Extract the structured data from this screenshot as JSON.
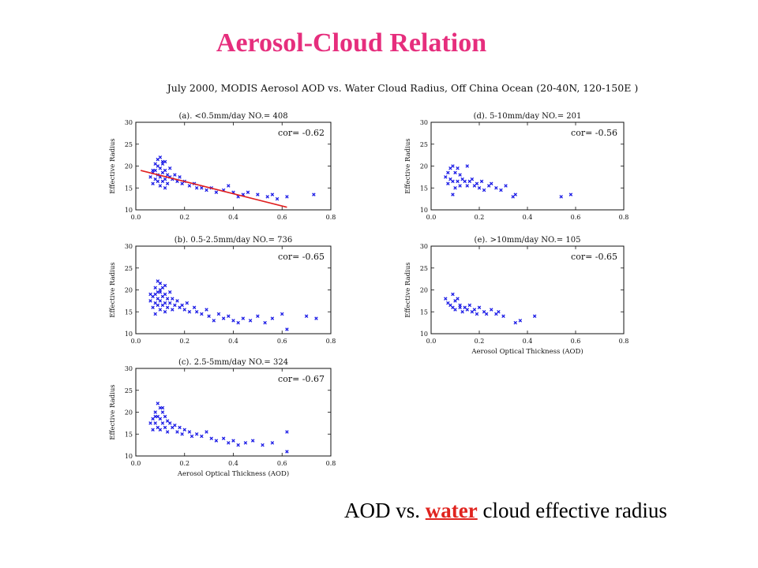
{
  "slide": {
    "title": "Aerosol-Cloud  Relation",
    "figure_title": "July 2000, MODIS Aerosol AOD vs. Water Cloud Radius,  Off China Ocean (20-40N, 120-150E )",
    "caption_before": "AOD vs. ",
    "caption_highlight": "water",
    "caption_after": " cloud effective radius"
  },
  "colors": {
    "title": "#e62e7d",
    "points": "#1a1ae6",
    "fit_line": "#e02020",
    "highlight": "#e0241f"
  },
  "chart_data": [
    {
      "id": "a",
      "type": "scatter",
      "title": "(a). <0.5mm/day    NO.=   408",
      "corr": "cor= -0.62",
      "xlabel": "",
      "ylabel": "Effective Radius",
      "xlim": [
        0,
        0.8
      ],
      "ylim": [
        10,
        30
      ],
      "xticks": [
        "0.0",
        "0.2",
        "0.4",
        "0.6",
        "0.8"
      ],
      "yticks": [
        "10",
        "15",
        "20",
        "25",
        "30"
      ],
      "fit_line": {
        "x": [
          0.02,
          0.62
        ],
        "y": [
          19.0,
          10.6
        ]
      },
      "series": [
        {
          "x": [
            0.06,
            0.07,
            0.07,
            0.08,
            0.08,
            0.08,
            0.09,
            0.09,
            0.09,
            0.1,
            0.1,
            0.1,
            0.1,
            0.11,
            0.11,
            0.11,
            0.12,
            0.12,
            0.12,
            0.13,
            0.13,
            0.14,
            0.14,
            0.15,
            0.16,
            0.17,
            0.18,
            0.19,
            0.2,
            0.22,
            0.24,
            0.25,
            0.27,
            0.29,
            0.31,
            0.33,
            0.36,
            0.38,
            0.4,
            0.42,
            0.44,
            0.46,
            0.5,
            0.54,
            0.56,
            0.58,
            0.62,
            0.73,
            0.09,
            0.11,
            0.12,
            0.07
          ],
          "y": [
            17.5,
            18.5,
            16.0,
            20.5,
            19.0,
            17.0,
            21.5,
            18.0,
            16.5,
            22.0,
            19.5,
            17.5,
            15.5,
            20.5,
            18.5,
            16.5,
            21.0,
            19.0,
            17.0,
            18.0,
            16.0,
            19.5,
            17.5,
            17.0,
            18.0,
            16.5,
            17.5,
            16.0,
            16.5,
            15.5,
            16.0,
            15.0,
            15.0,
            14.5,
            15.0,
            14.0,
            14.5,
            15.5,
            14.0,
            13.0,
            13.5,
            14.0,
            13.5,
            13.0,
            13.5,
            12.5,
            13.0,
            13.5,
            20.0,
            21.0,
            15.0,
            19.0
          ]
        }
      ]
    },
    {
      "id": "b",
      "type": "scatter",
      "title": "(b). 0.5-2.5mm/day    NO.=   736",
      "corr": "cor= -0.65",
      "xlabel": "",
      "ylabel": "Effective Radius",
      "xlim": [
        0,
        0.8
      ],
      "ylim": [
        10,
        30
      ],
      "xticks": [
        "0.0",
        "0.2",
        "0.4",
        "0.6",
        "0.8"
      ],
      "yticks": [
        "10",
        "15",
        "20",
        "25",
        "30"
      ],
      "series": [
        {
          "x": [
            0.06,
            0.07,
            0.07,
            0.08,
            0.08,
            0.08,
            0.09,
            0.09,
            0.09,
            0.09,
            0.1,
            0.1,
            0.1,
            0.1,
            0.11,
            0.11,
            0.11,
            0.12,
            0.12,
            0.12,
            0.13,
            0.13,
            0.14,
            0.14,
            0.15,
            0.15,
            0.16,
            0.17,
            0.18,
            0.19,
            0.2,
            0.21,
            0.22,
            0.24,
            0.25,
            0.27,
            0.29,
            0.3,
            0.32,
            0.34,
            0.36,
            0.38,
            0.4,
            0.42,
            0.44,
            0.47,
            0.5,
            0.53,
            0.56,
            0.6,
            0.62,
            0.7,
            0.74,
            0.08,
            0.1,
            0.12,
            0.06
          ],
          "y": [
            17.5,
            18.5,
            16.0,
            20.5,
            19.0,
            17.0,
            22.0,
            19.5,
            18.0,
            16.5,
            21.5,
            19.5,
            17.5,
            15.5,
            20.5,
            18.5,
            16.5,
            21.0,
            19.0,
            17.0,
            18.0,
            16.0,
            19.5,
            17.0,
            18.0,
            15.5,
            16.5,
            17.5,
            16.0,
            16.5,
            15.5,
            17.0,
            15.0,
            16.0,
            15.0,
            14.5,
            15.5,
            14.0,
            13.0,
            14.5,
            13.5,
            14.0,
            13.0,
            12.5,
            13.5,
            13.0,
            14.0,
            12.5,
            13.5,
            14.5,
            11.0,
            14.0,
            13.5,
            14.5,
            20.0,
            15.0,
            19.0
          ]
        }
      ]
    },
    {
      "id": "c",
      "type": "scatter",
      "title": "(c). 2.5-5mm/day    NO.=   324",
      "corr": "cor= -0.67",
      "xlabel": "Aerosol Optical Thickness (AOD)",
      "ylabel": "Effective Radius",
      "xlim": [
        0,
        0.8
      ],
      "ylim": [
        10,
        30
      ],
      "xticks": [
        "0.0",
        "0.2",
        "0.4",
        "0.6",
        "0.8"
      ],
      "yticks": [
        "10",
        "15",
        "20",
        "25",
        "30"
      ],
      "series": [
        {
          "x": [
            0.06,
            0.07,
            0.07,
            0.08,
            0.08,
            0.09,
            0.09,
            0.09,
            0.1,
            0.1,
            0.1,
            0.11,
            0.11,
            0.12,
            0.12,
            0.13,
            0.13,
            0.14,
            0.15,
            0.16,
            0.17,
            0.18,
            0.19,
            0.2,
            0.22,
            0.23,
            0.25,
            0.27,
            0.29,
            0.31,
            0.33,
            0.36,
            0.38,
            0.4,
            0.42,
            0.45,
            0.48,
            0.52,
            0.56,
            0.62,
            0.62,
            0.08,
            0.11
          ],
          "y": [
            17.5,
            18.5,
            16.0,
            20.0,
            17.5,
            22.0,
            19.0,
            16.5,
            21.0,
            18.5,
            16.0,
            20.0,
            17.5,
            19.0,
            16.5,
            18.0,
            15.5,
            17.5,
            16.5,
            17.0,
            15.5,
            16.5,
            15.0,
            16.0,
            15.5,
            14.5,
            15.0,
            14.5,
            15.5,
            14.0,
            13.5,
            14.0,
            13.0,
            13.5,
            12.5,
            13.0,
            13.5,
            12.5,
            13.0,
            15.5,
            11.0,
            19.0,
            21.0
          ]
        }
      ]
    },
    {
      "id": "d",
      "type": "scatter",
      "title": "(d). 5-10mm/day    NO.=   201",
      "corr": "cor= -0.56",
      "xlabel": "",
      "ylabel": "Effective Radius",
      "xlim": [
        0,
        0.8
      ],
      "ylim": [
        10,
        30
      ],
      "xticks": [
        "0.0",
        "0.2",
        "0.4",
        "0.6",
        "0.8"
      ],
      "yticks": [
        "10",
        "15",
        "20",
        "25",
        "30"
      ],
      "series": [
        {
          "x": [
            0.06,
            0.07,
            0.07,
            0.08,
            0.08,
            0.09,
            0.09,
            0.1,
            0.1,
            0.11,
            0.11,
            0.12,
            0.12,
            0.13,
            0.14,
            0.15,
            0.16,
            0.17,
            0.18,
            0.19,
            0.2,
            0.21,
            0.22,
            0.24,
            0.25,
            0.27,
            0.29,
            0.31,
            0.34,
            0.35,
            0.54,
            0.58,
            0.09,
            0.15
          ],
          "y": [
            17.5,
            18.5,
            16.0,
            19.5,
            17.0,
            20.0,
            16.5,
            18.5,
            15.0,
            19.5,
            16.5,
            18.0,
            15.5,
            17.0,
            16.5,
            15.5,
            16.5,
            17.0,
            15.5,
            16.0,
            15.0,
            16.5,
            14.5,
            15.5,
            16.0,
            15.0,
            14.5,
            15.5,
            13.0,
            13.5,
            13.0,
            13.5,
            13.5,
            20.0
          ]
        }
      ]
    },
    {
      "id": "e",
      "type": "scatter",
      "title": "(e). >10mm/day    NO.=   105",
      "corr": "cor= -0.65",
      "xlabel": "Aerosol Optical Thickness (AOD)",
      "ylabel": "Effective Radius",
      "xlim": [
        0,
        0.8
      ],
      "ylim": [
        10,
        30
      ],
      "xticks": [
        "0.0",
        "0.2",
        "0.4",
        "0.6",
        "0.8"
      ],
      "yticks": [
        "10",
        "15",
        "20",
        "25",
        "30"
      ],
      "series": [
        {
          "x": [
            0.06,
            0.07,
            0.08,
            0.09,
            0.1,
            0.1,
            0.11,
            0.12,
            0.13,
            0.14,
            0.15,
            0.16,
            0.17,
            0.18,
            0.19,
            0.2,
            0.22,
            0.23,
            0.25,
            0.27,
            0.28,
            0.3,
            0.35,
            0.37,
            0.43,
            0.09,
            0.12
          ],
          "y": [
            18.0,
            17.0,
            16.5,
            16.0,
            17.5,
            15.5,
            18.0,
            16.5,
            15.0,
            16.0,
            15.5,
            16.5,
            15.0,
            15.5,
            14.5,
            16.0,
            15.0,
            14.5,
            15.5,
            14.5,
            15.0,
            14.0,
            12.5,
            13.0,
            14.0,
            19.0,
            16.0
          ]
        }
      ]
    }
  ]
}
